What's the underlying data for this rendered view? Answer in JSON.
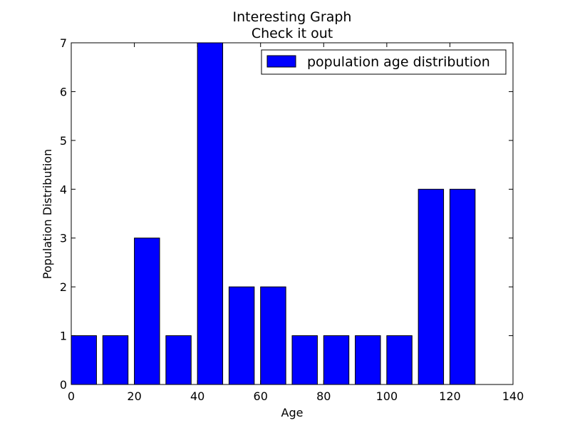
{
  "chart_data": {
    "type": "bar",
    "title": "Interesting Graph",
    "subtitle": "Check it out",
    "xlabel": "Age",
    "ylabel": "Population Distribution",
    "xlim": [
      0,
      140
    ],
    "ylim": [
      0,
      7
    ],
    "xticks": [
      0,
      20,
      40,
      60,
      80,
      100,
      120,
      140
    ],
    "yticks": [
      0,
      1,
      2,
      3,
      4,
      5,
      6,
      7
    ],
    "bin_width": 10,
    "bar_width": 8,
    "bins_start": [
      0,
      10,
      20,
      30,
      40,
      50,
      60,
      70,
      80,
      90,
      100,
      110,
      120
    ],
    "values": [
      1,
      1,
      3,
      1,
      7,
      2,
      2,
      1,
      1,
      1,
      1,
      4,
      4
    ],
    "grid": false,
    "legend": {
      "position": "top-right",
      "entries": [
        {
          "label": "population age distribution",
          "color": "#0000ff"
        }
      ]
    },
    "colors": {
      "bar_fill": "#0000ff",
      "bar_edge": "#000000"
    }
  }
}
